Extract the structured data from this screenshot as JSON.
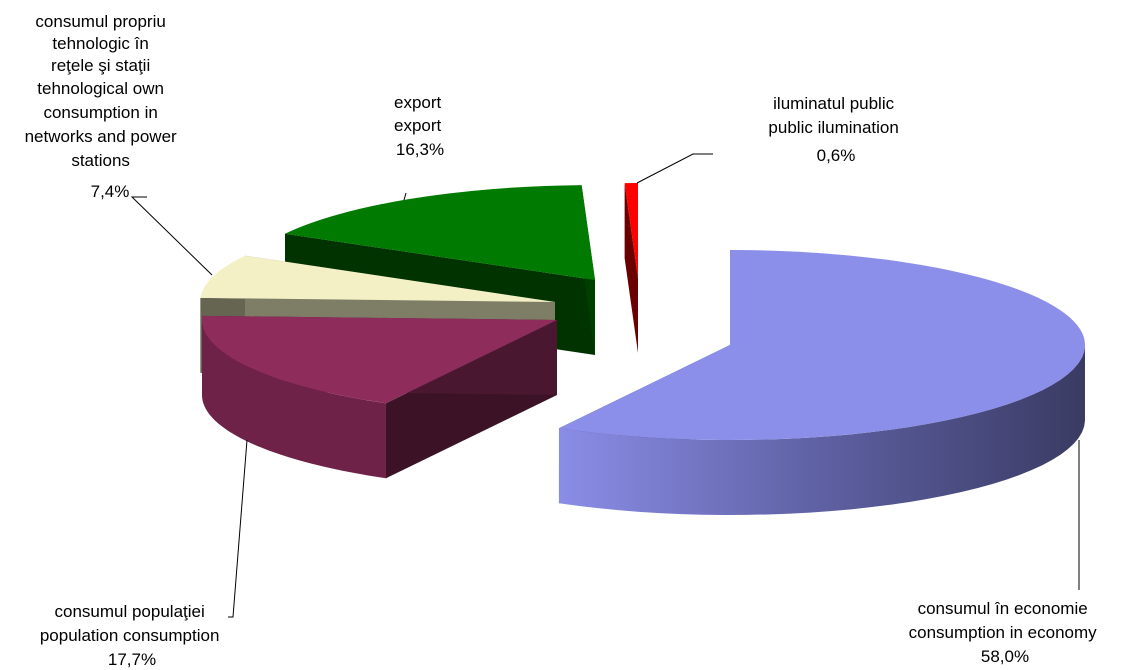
{
  "chart_data": {
    "type": "pie",
    "subtype": "3d-exploded",
    "slices": [
      {
        "label_lines": [
          "consumul în economie",
          "consumption in economy"
        ],
        "value": 58.0,
        "value_label": "58,0%",
        "color": "#8b8ee8"
      },
      {
        "label_lines": [
          "consumul populaţiei",
          "population consumption"
        ],
        "value": 17.7,
        "value_label": "17,7%",
        "color": "#8e2c5c"
      },
      {
        "label_lines": [
          "consumul propriu",
          "tehnologic în",
          "reţele şi staţii",
          "tehnological own",
          "consumption in",
          "networks and power",
          "stations"
        ],
        "value": 7.4,
        "value_label": "7,4%",
        "color": "#f2f0c4"
      },
      {
        "label_lines": [
          "export",
          "export"
        ],
        "value": 16.3,
        "value_label": "16,3%",
        "color": "#007a00"
      },
      {
        "label_lines": [
          "iluminatul public",
          "public ilumination"
        ],
        "value": 0.6,
        "value_label": "0,6%",
        "color": "#ff0000"
      }
    ],
    "legend": "none",
    "title": ""
  }
}
